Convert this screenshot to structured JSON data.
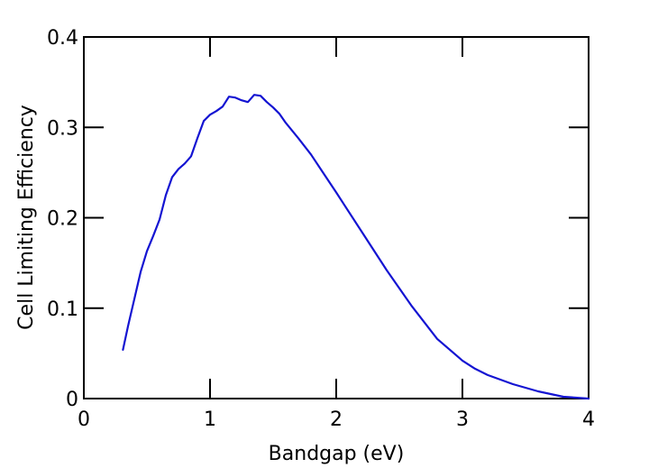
{
  "chart_data": {
    "type": "line",
    "xlabel": "Bandgap (eV)",
    "ylabel": "Cell Limiting Efficiency",
    "xlim": [
      0,
      4
    ],
    "ylim": [
      0,
      0.4
    ],
    "x_ticks": [
      0,
      1,
      2,
      3,
      4
    ],
    "x_tick_labels": [
      "0",
      "1",
      "2",
      "3",
      "4"
    ],
    "y_ticks": [
      0,
      0.1,
      0.2,
      0.3,
      0.4
    ],
    "y_tick_labels": [
      "0",
      "0.1",
      "0.2",
      "0.3",
      "0.4"
    ],
    "grid": false,
    "line_color": "#1414d2",
    "series": [
      {
        "x": [
          0.31,
          0.35,
          0.4,
          0.45,
          0.5,
          0.55,
          0.6,
          0.65,
          0.7,
          0.75,
          0.8,
          0.85,
          0.9,
          0.95,
          1.0,
          1.05,
          1.1,
          1.15,
          1.2,
          1.25,
          1.3,
          1.35,
          1.4,
          1.45,
          1.5,
          1.55,
          1.6,
          1.7,
          1.8,
          1.9,
          2.0,
          2.2,
          2.4,
          2.6,
          2.8,
          3.0,
          3.1,
          3.2,
          3.4,
          3.6,
          3.8,
          4.0
        ],
        "y": [
          0.054,
          0.08,
          0.11,
          0.14,
          0.163,
          0.18,
          0.198,
          0.225,
          0.245,
          0.254,
          0.26,
          0.268,
          0.288,
          0.307,
          0.314,
          0.318,
          0.323,
          0.334,
          0.333,
          0.33,
          0.328,
          0.336,
          0.335,
          0.328,
          0.322,
          0.315,
          0.305,
          0.288,
          0.27,
          0.249,
          0.228,
          0.185,
          0.142,
          0.102,
          0.066,
          0.042,
          0.033,
          0.026,
          0.016,
          0.008,
          0.002,
          0.0
        ]
      }
    ]
  }
}
